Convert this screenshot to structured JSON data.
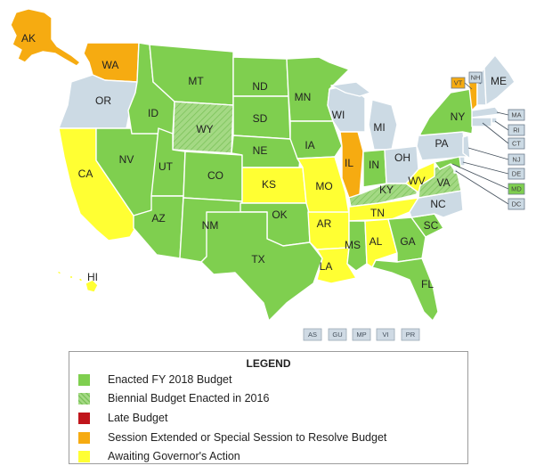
{
  "colors": {
    "enacted": "#7fcf4f",
    "enacted_dark": "#62b33a",
    "biennial": "#a4d984",
    "late": "#c0151b",
    "extended": "#f6ab11",
    "awaiting": "#ffff33",
    "no_data": "#ccdae4"
  },
  "states": [
    {
      "code": "AK",
      "label": "AK",
      "status": "extended"
    },
    {
      "code": "HI",
      "label": "HI",
      "status": "awaiting"
    },
    {
      "code": "WA",
      "label": "WA",
      "status": "extended"
    },
    {
      "code": "OR",
      "label": "OR",
      "status": "no_data"
    },
    {
      "code": "CA",
      "label": "CA",
      "status": "awaiting"
    },
    {
      "code": "NV",
      "label": "NV",
      "status": "enacted"
    },
    {
      "code": "ID",
      "label": "ID",
      "status": "enacted"
    },
    {
      "code": "MT",
      "label": "MT",
      "status": "enacted"
    },
    {
      "code": "WY",
      "label": "WY",
      "status": "biennial"
    },
    {
      "code": "UT",
      "label": "UT",
      "status": "enacted"
    },
    {
      "code": "AZ",
      "label": "AZ",
      "status": "enacted"
    },
    {
      "code": "CO",
      "label": "CO",
      "status": "enacted"
    },
    {
      "code": "NM",
      "label": "NM",
      "status": "enacted"
    },
    {
      "code": "ND",
      "label": "ND",
      "status": "enacted"
    },
    {
      "code": "SD",
      "label": "SD",
      "status": "enacted"
    },
    {
      "code": "NE",
      "label": "NE",
      "status": "enacted"
    },
    {
      "code": "KS",
      "label": "KS",
      "status": "awaiting"
    },
    {
      "code": "OK",
      "label": "OK",
      "status": "enacted"
    },
    {
      "code": "TX",
      "label": "TX",
      "status": "enacted"
    },
    {
      "code": "MN",
      "label": "MN",
      "status": "enacted"
    },
    {
      "code": "IA",
      "label": "IA",
      "status": "enacted"
    },
    {
      "code": "MO",
      "label": "MO",
      "status": "awaiting"
    },
    {
      "code": "AR",
      "label": "AR",
      "status": "awaiting"
    },
    {
      "code": "LA",
      "label": "LA",
      "status": "awaiting"
    },
    {
      "code": "WI",
      "label": "WI",
      "status": "no_data"
    },
    {
      "code": "IL",
      "label": "IL",
      "status": "extended"
    },
    {
      "code": "MI",
      "label": "MI",
      "status": "no_data"
    },
    {
      "code": "IN",
      "label": "IN",
      "status": "enacted"
    },
    {
      "code": "OH",
      "label": "OH",
      "status": "no_data"
    },
    {
      "code": "KY",
      "label": "KY",
      "status": "biennial"
    },
    {
      "code": "TN",
      "label": "TN",
      "status": "awaiting"
    },
    {
      "code": "MS",
      "label": "MS",
      "status": "enacted"
    },
    {
      "code": "AL",
      "label": "AL",
      "status": "awaiting"
    },
    {
      "code": "GA",
      "label": "GA",
      "status": "enacted"
    },
    {
      "code": "FL",
      "label": "FL",
      "status": "enacted"
    },
    {
      "code": "SC",
      "label": "SC",
      "status": "enacted"
    },
    {
      "code": "NC",
      "label": "NC",
      "status": "no_data"
    },
    {
      "code": "VA",
      "label": "VA",
      "status": "biennial"
    },
    {
      "code": "WV",
      "label": "WV",
      "status": "awaiting"
    },
    {
      "code": "PA",
      "label": "PA",
      "status": "no_data"
    },
    {
      "code": "NY",
      "label": "NY",
      "status": "enacted"
    },
    {
      "code": "VT",
      "label": "VT",
      "status": "extended"
    },
    {
      "code": "NH",
      "label": "NH",
      "status": "no_data"
    },
    {
      "code": "ME",
      "label": "ME",
      "status": "no_data"
    },
    {
      "code": "MA",
      "label": "MA",
      "status": "no_data"
    },
    {
      "code": "RI",
      "label": "RI",
      "status": "no_data"
    },
    {
      "code": "CT",
      "label": "CT",
      "status": "no_data"
    },
    {
      "code": "NJ",
      "label": "NJ",
      "status": "no_data"
    },
    {
      "code": "DE",
      "label": "DE",
      "status": "no_data"
    },
    {
      "code": "MD",
      "label": "MD",
      "status": "enacted"
    },
    {
      "code": "DC",
      "label": "DC",
      "status": "no_data"
    }
  ],
  "territories": [
    "AS",
    "GU",
    "MP",
    "VI",
    "PR"
  ],
  "legend": {
    "title": "LEGEND",
    "items": [
      {
        "key": "enacted",
        "label": "Enacted FY 2018 Budget",
        "color": "#7fcf4f",
        "pattern": false
      },
      {
        "key": "biennial",
        "label": "Biennial Budget Enacted in 2016",
        "color": "#a4d984",
        "pattern": true
      },
      {
        "key": "late",
        "label": "Late Budget",
        "color": "#c0151b",
        "pattern": false
      },
      {
        "key": "extended",
        "label": "Session Extended or Special Session to Resolve Budget",
        "color": "#f6ab11",
        "pattern": false
      },
      {
        "key": "awaiting",
        "label": "Awaiting Governor's Action",
        "color": "#ffff33",
        "pattern": false
      }
    ]
  }
}
